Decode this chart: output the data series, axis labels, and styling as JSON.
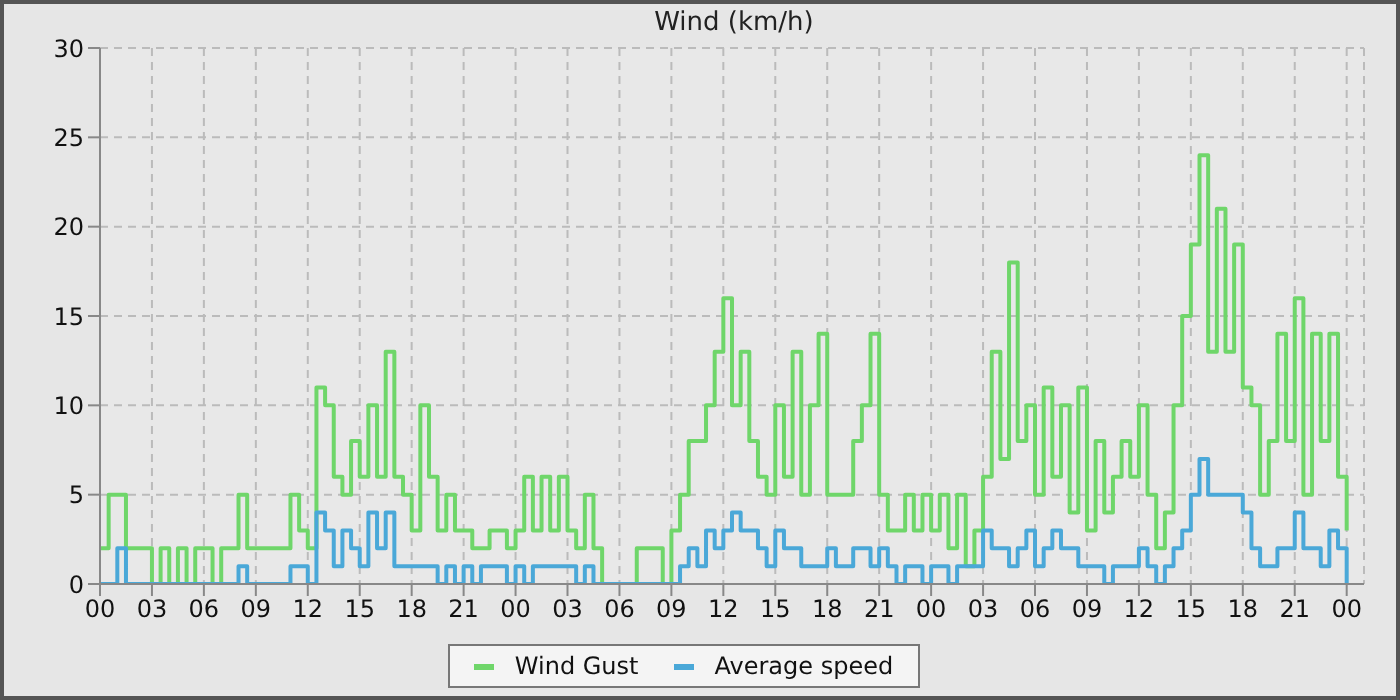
{
  "chart_data": {
    "type": "step",
    "title": "Wind (km/h)",
    "x": [
      0,
      0.5,
      1,
      1.5,
      2,
      2.5,
      3,
      3.5,
      4,
      4.5,
      5,
      5.5,
      6,
      6.5,
      7,
      7.5,
      8,
      8.5,
      9,
      9.5,
      10,
      10.5,
      11,
      11.5,
      12,
      12.5,
      13,
      13.5,
      14,
      14.5,
      15,
      15.5,
      16,
      16.5,
      17,
      17.5,
      18,
      18.5,
      19,
      19.5,
      20,
      20.5,
      21,
      21.5,
      22,
      22.5,
      23,
      23.5,
      24,
      24.5,
      25,
      25.5,
      26,
      26.5,
      27,
      27.5,
      28,
      28.5,
      29,
      29.5,
      30,
      30.5,
      31,
      31.5,
      32,
      32.5,
      33,
      33.5,
      34,
      34.5,
      35,
      35.5,
      36,
      36.5,
      37,
      37.5,
      38,
      38.5,
      39,
      39.5,
      40,
      40.5,
      41,
      41.5,
      42,
      42.5,
      43,
      43.5,
      44,
      44.5,
      45,
      45.5,
      46,
      46.5,
      47,
      47.5,
      48,
      48.5,
      49,
      49.5,
      50,
      50.5,
      51,
      51.5,
      52,
      52.5,
      53,
      53.5,
      54,
      54.5,
      55,
      55.5,
      56,
      56.5,
      57,
      57.5,
      58,
      58.5,
      59,
      59.5,
      60,
      60.5,
      61,
      61.5,
      62,
      62.5,
      63,
      63.5,
      64,
      64.5,
      65,
      65.5,
      66,
      66.5,
      67,
      67.5,
      68,
      68.5,
      69,
      69.5,
      70,
      70.5,
      71,
      71.5,
      72
    ],
    "series": [
      {
        "name": "Wind Gust",
        "color": "#6fd66a",
        "values": [
          2,
          5,
          5,
          2,
          2,
          2,
          0,
          2,
          0,
          2,
          0,
          2,
          2,
          0,
          2,
          2,
          5,
          2,
          2,
          2,
          2,
          2,
          5,
          3,
          2,
          11,
          10,
          6,
          5,
          8,
          6,
          10,
          6,
          13,
          6,
          5,
          3,
          10,
          6,
          3,
          5,
          3,
          3,
          2,
          2,
          3,
          3,
          2,
          3,
          6,
          3,
          6,
          3,
          6,
          3,
          2,
          5,
          2,
          0,
          0,
          0,
          0,
          2,
          2,
          2,
          0,
          3,
          5,
          8,
          8,
          10,
          13,
          16,
          10,
          13,
          8,
          6,
          5,
          10,
          6,
          13,
          5,
          10,
          14,
          5,
          5,
          5,
          8,
          10,
          14,
          5,
          3,
          3,
          5,
          3,
          5,
          3,
          5,
          2,
          5,
          1,
          3,
          6,
          13,
          7,
          18,
          8,
          10,
          5,
          11,
          6,
          10,
          4,
          11,
          3,
          8,
          4,
          6,
          8,
          6,
          10,
          5,
          2,
          4,
          10,
          15,
          19,
          24,
          13,
          21,
          13,
          19,
          11,
          10,
          5,
          8,
          14,
          8,
          16,
          5,
          14,
          8,
          14,
          6,
          3
        ]
      },
      {
        "name": "Average speed",
        "color": "#4aa8d8",
        "values": [
          0,
          0,
          2,
          0,
          0,
          0,
          0,
          0,
          0,
          0,
          0,
          0,
          0,
          0,
          0,
          0,
          1,
          0,
          0,
          0,
          0,
          0,
          1,
          1,
          0,
          4,
          3,
          1,
          3,
          2,
          1,
          4,
          2,
          4,
          1,
          1,
          1,
          1,
          1,
          0,
          1,
          0,
          1,
          0,
          1,
          1,
          1,
          0,
          1,
          0,
          1,
          1,
          1,
          1,
          1,
          0,
          1,
          0,
          0,
          0,
          0,
          0,
          0,
          0,
          0,
          0,
          0,
          1,
          2,
          1,
          3,
          2,
          3,
          4,
          3,
          3,
          2,
          1,
          3,
          2,
          2,
          1,
          1,
          1,
          2,
          1,
          1,
          2,
          2,
          1,
          2,
          1,
          0,
          1,
          1,
          0,
          1,
          1,
          0,
          1,
          1,
          1,
          3,
          2,
          2,
          1,
          2,
          3,
          1,
          2,
          3,
          2,
          2,
          1,
          1,
          1,
          0,
          1,
          1,
          1,
          2,
          1,
          0,
          1,
          2,
          3,
          5,
          7,
          5,
          5,
          5,
          5,
          4,
          2,
          1,
          1,
          2,
          2,
          4,
          2,
          2,
          1,
          3,
          2,
          0
        ]
      }
    ],
    "xlim": [
      0,
      73
    ],
    "xticks": [
      {
        "value": 0,
        "label": "00"
      },
      {
        "value": 3,
        "label": "03"
      },
      {
        "value": 6,
        "label": "06"
      },
      {
        "value": 9,
        "label": "09"
      },
      {
        "value": 12,
        "label": "12"
      },
      {
        "value": 15,
        "label": "15"
      },
      {
        "value": 18,
        "label": "18"
      },
      {
        "value": 21,
        "label": "21"
      },
      {
        "value": 24,
        "label": "00"
      },
      {
        "value": 27,
        "label": "03"
      },
      {
        "value": 30,
        "label": "06"
      },
      {
        "value": 33,
        "label": "09"
      },
      {
        "value": 36,
        "label": "12"
      },
      {
        "value": 39,
        "label": "15"
      },
      {
        "value": 42,
        "label": "18"
      },
      {
        "value": 45,
        "label": "21"
      },
      {
        "value": 48,
        "label": "00"
      },
      {
        "value": 51,
        "label": "03"
      },
      {
        "value": 54,
        "label": "06"
      },
      {
        "value": 57,
        "label": "09"
      },
      {
        "value": 60,
        "label": "12"
      },
      {
        "value": 63,
        "label": "15"
      },
      {
        "value": 66,
        "label": "18"
      },
      {
        "value": 69,
        "label": "21"
      },
      {
        "value": 72,
        "label": "00"
      }
    ],
    "ylim": [
      0,
      30
    ],
    "yticks": [
      0,
      5,
      10,
      15,
      20,
      25,
      30
    ],
    "grid": true,
    "legend": "bottom",
    "line_style": "solid",
    "marker": "none"
  }
}
